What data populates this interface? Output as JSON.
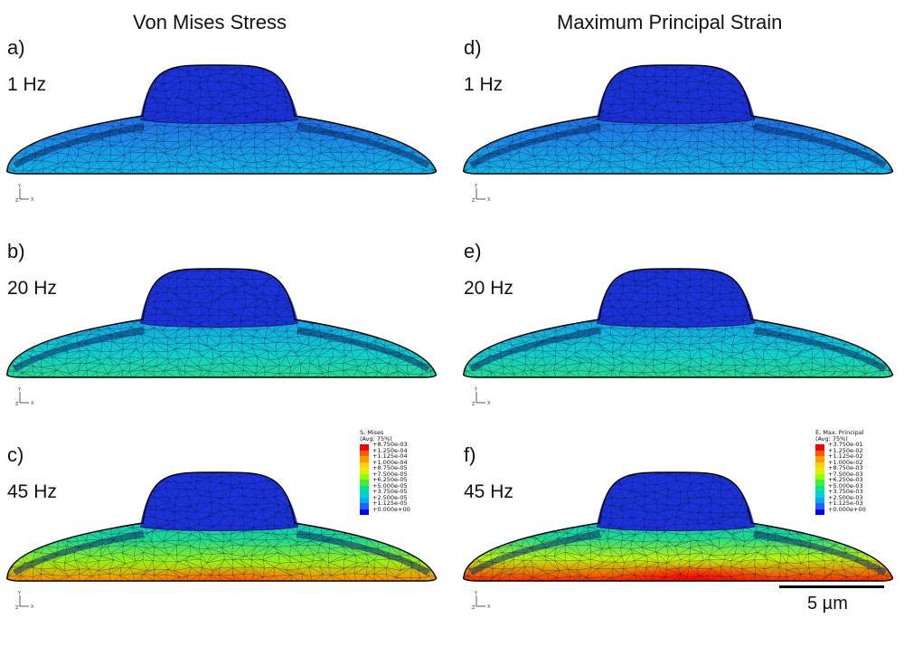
{
  "titles": {
    "left": "Von Mises Stress",
    "right": "Maximum Principal Strain"
  },
  "panels": [
    {
      "label": "a)",
      "freq": "1 Hz",
      "field": "stress"
    },
    {
      "label": "b)",
      "freq": "20 Hz",
      "field": "stress"
    },
    {
      "label": "c)",
      "freq": "45 Hz",
      "field": "stress"
    },
    {
      "label": "d)",
      "freq": "1 Hz",
      "field": "strain"
    },
    {
      "label": "e)",
      "freq": "20 Hz",
      "field": "strain"
    },
    {
      "label": "f)",
      "freq": "45 Hz",
      "field": "strain"
    }
  ],
  "triad": {
    "y": "Y",
    "z": "Z",
    "x": "X"
  },
  "legend_stress": {
    "title": "S, Mises",
    "avg": "(Avg: 75%)",
    "values": [
      "+8.750e-03",
      "+1.250e-04",
      "+1.125e-04",
      "+1.000e-04",
      "+8.750e-05",
      "+7.500e-05",
      "+6.250e-05",
      "+5.000e-05",
      "+3.750e-05",
      "+2.500e-05",
      "+1.125e-05",
      "+0.000e+00"
    ]
  },
  "legend_strain": {
    "title": "E, Max. Principal",
    "avg": "(Avg: 75%)",
    "values": [
      "+3.750e-01",
      "+1.250e-02",
      "+1.125e-02",
      "+1.000e-02",
      "+8.750e-03",
      "+7.500e-03",
      "+6.250e-03",
      "+5.000e-03",
      "+3.750e-03",
      "+2.500e-03",
      "+1.125e-03",
      "+0.000e+00"
    ]
  },
  "legend_colors": [
    "#ff0000",
    "#ff5a00",
    "#ff9a00",
    "#ffd200",
    "#dcf000",
    "#93ff00",
    "#3cf03c",
    "#00e68c",
    "#00d2d2",
    "#00aaff",
    "#1e64ff",
    "#0000ff"
  ],
  "scale_bar": {
    "label": "5 µm"
  },
  "colors": {
    "cap": "#1a32d8",
    "outline": "#000000"
  }
}
